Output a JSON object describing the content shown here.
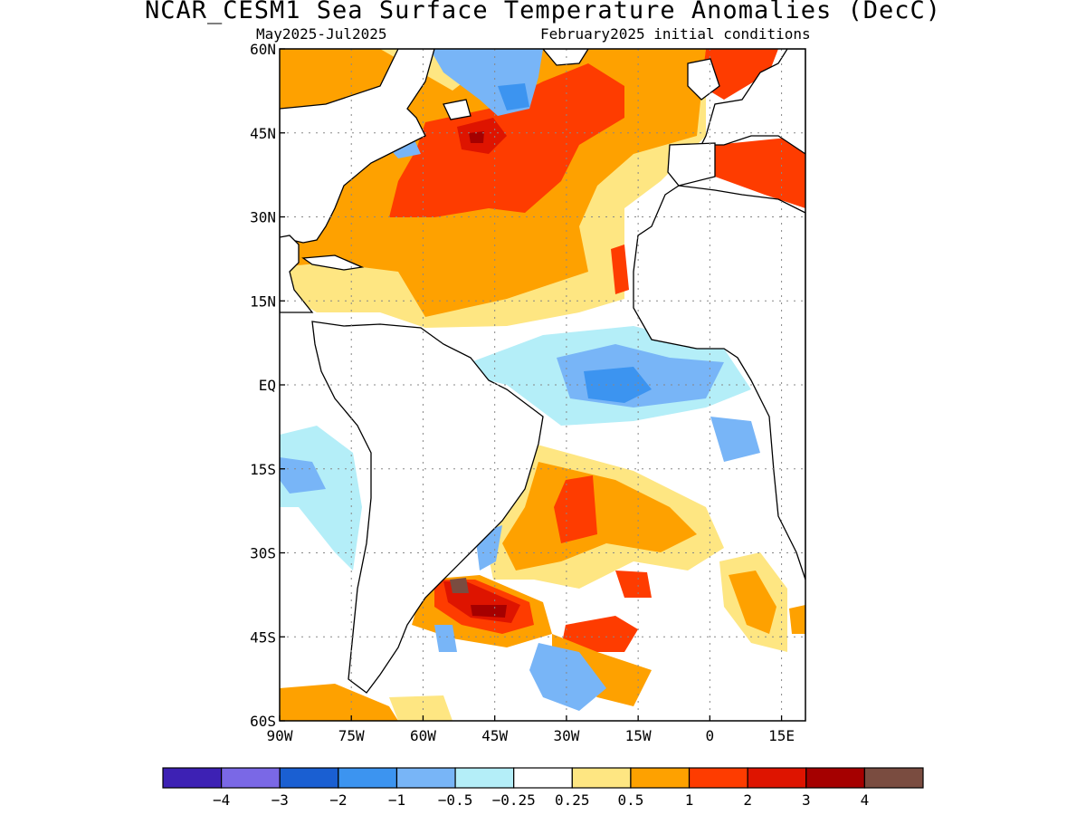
{
  "title": "NCAR_CESM1 Sea Surface Temperature Anomalies (DecC)",
  "subtitle_left": "May2025-Jul2025",
  "subtitle_right": "February2025 initial conditions",
  "map": {
    "region": "Atlantic",
    "lat_range": [
      -60,
      60
    ],
    "lon_range": [
      -90,
      20
    ],
    "lat_ticks": [
      "60N",
      "45N",
      "30N",
      "15N",
      "EQ",
      "15S",
      "30S",
      "45S",
      "60S"
    ],
    "lon_ticks": [
      "90W",
      "75W",
      "60W",
      "45W",
      "30W",
      "15W",
      "0",
      "15E"
    ],
    "gridlines": "dotted"
  },
  "colorbar": {
    "colors": [
      "#3d21b4",
      "#7a68e6",
      "#1a5fd2",
      "#3c94f0",
      "#78b5f7",
      "#b4eef8",
      "#ffffff",
      "#fee682",
      "#fea100",
      "#fe3c00",
      "#de1400",
      "#a50000",
      "#7a4c40"
    ],
    "labels": [
      "-4",
      "-3",
      "-2",
      "-1",
      "-0.5",
      "-0.25",
      "0.25",
      "0.5",
      "1",
      "2",
      "3",
      "4"
    ]
  }
}
